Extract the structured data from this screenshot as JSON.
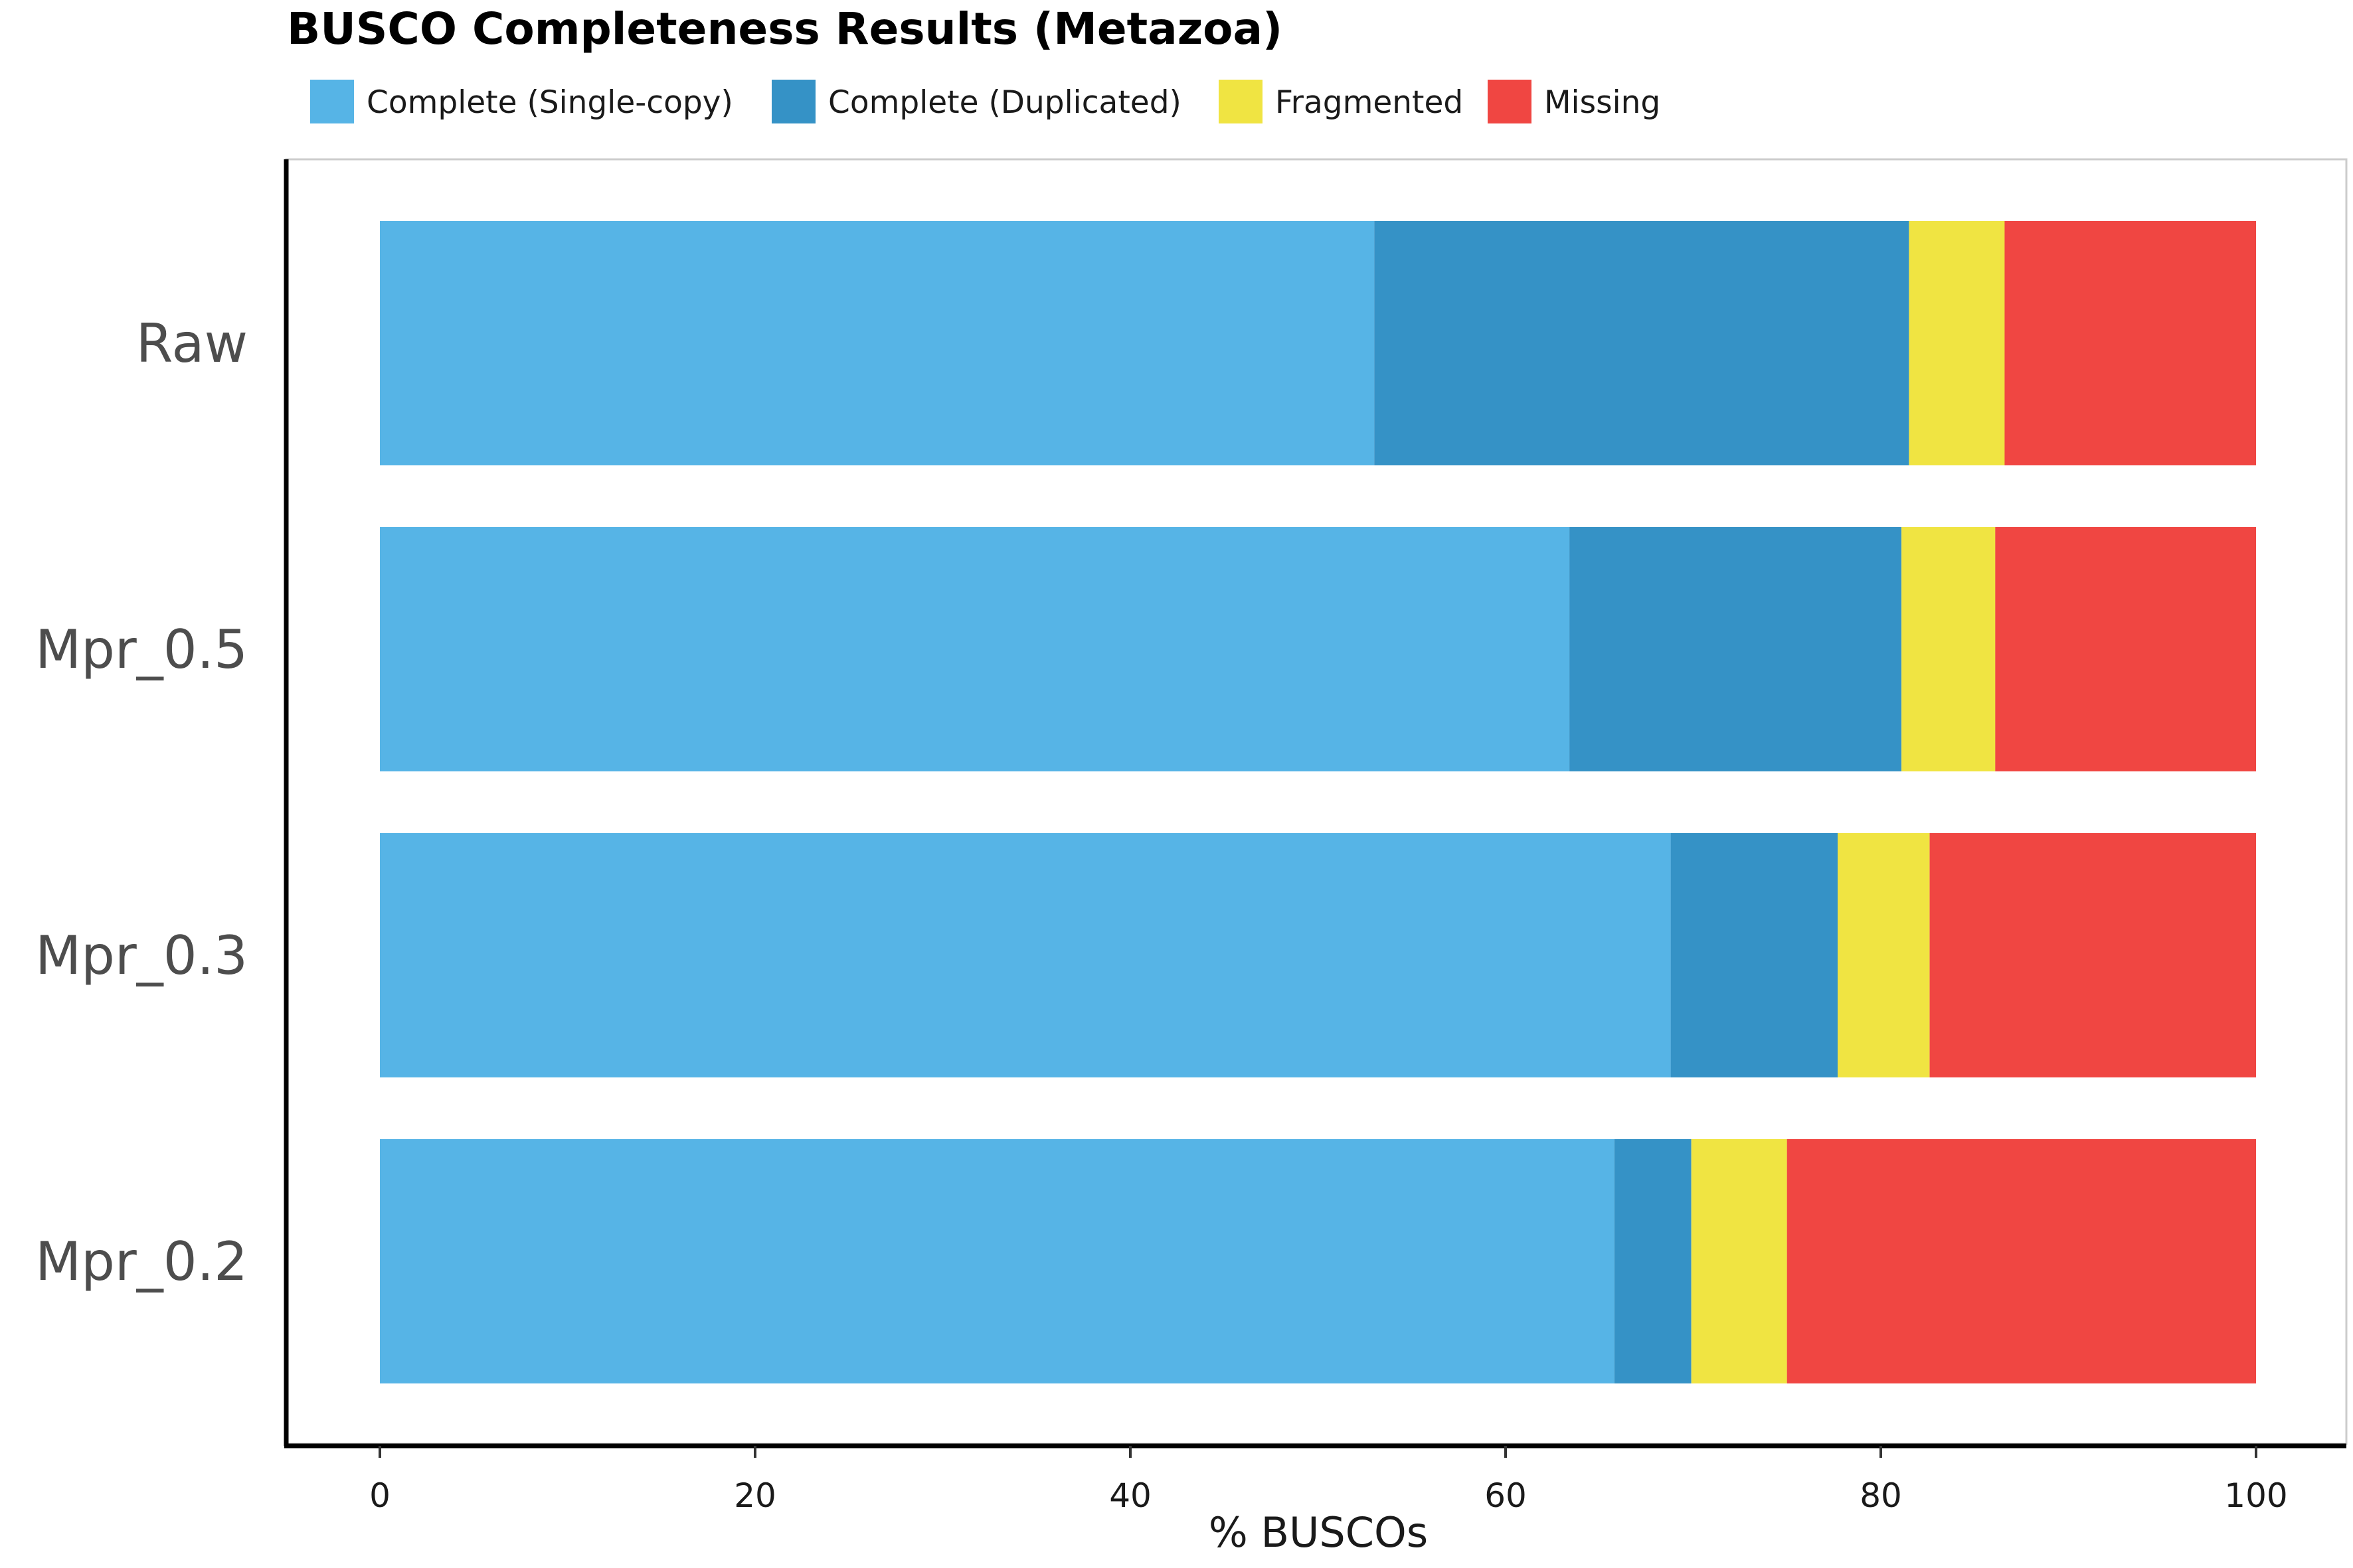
{
  "chart_data": {
    "type": "bar",
    "orientation": "horizontal",
    "stacked": true,
    "title": "BUSCO Completeness Results (Metazoa)",
    "xlabel": "% BUSCOs",
    "ylabel": "",
    "xlim": [
      0,
      100
    ],
    "xticks": [
      0,
      20,
      40,
      60,
      80,
      100
    ],
    "xtick_labels": [
      "0",
      "20",
      "40",
      "60",
      "80",
      "100"
    ],
    "legend_position": "top-left",
    "grid": false,
    "categories": [
      "Raw",
      "Mpr_0.5",
      "Mpr_0.3",
      "Mpr_0.2"
    ],
    "series": [
      {
        "name": "Complete (Single-copy)",
        "color": "#56B4E6",
        "values": [
          53.0,
          63.4,
          68.8,
          65.8
        ]
      },
      {
        "name": "Complete (Duplicated)",
        "color": "#3592C6",
        "values": [
          28.5,
          17.7,
          8.9,
          4.1
        ]
      },
      {
        "name": "Fragmented",
        "color": "#F0E442",
        "values": [
          5.1,
          5.0,
          4.9,
          5.1
        ]
      },
      {
        "name": "Missing",
        "color": "#F04642",
        "values": [
          13.4,
          13.9,
          17.4,
          25.0
        ]
      }
    ]
  }
}
